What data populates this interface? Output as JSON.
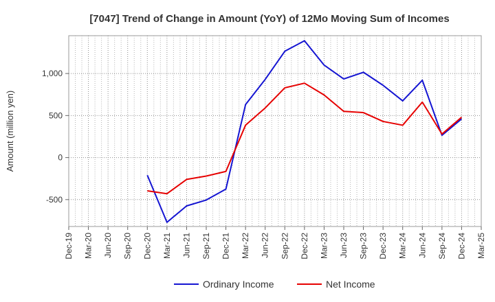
{
  "chart_data": {
    "type": "line",
    "title": "[7047]  Trend of Change in Amount (YoY) of 12Mo Moving Sum of Incomes",
    "xlabel": "",
    "ylabel": "Amount (million yen)",
    "ylim": [
      -820,
      1450
    ],
    "yticks": [
      -500,
      0,
      500,
      1000
    ],
    "ytick_labels": [
      "-500",
      "0",
      "500",
      "1,000"
    ],
    "categories": [
      "Dec-19",
      "Mar-20",
      "Jun-20",
      "Sep-20",
      "Dec-20",
      "Mar-21",
      "Jun-21",
      "Sep-21",
      "Dec-21",
      "Mar-22",
      "Jun-22",
      "Sep-22",
      "Dec-22",
      "Mar-23",
      "Jun-23",
      "Sep-23",
      "Dec-23",
      "Mar-24",
      "Jun-24",
      "Sep-24",
      "Dec-24",
      "Mar-25"
    ],
    "grid": true,
    "legend_position": "bottom",
    "series": [
      {
        "name": "Ordinary Income",
        "color": "#1414d2",
        "values": [
          null,
          null,
          null,
          null,
          -210,
          -770,
          -575,
          -505,
          -375,
          630,
          930,
          1265,
          1390,
          1100,
          935,
          1015,
          860,
          675,
          920,
          265,
          460,
          null
        ]
      },
      {
        "name": "Net Income",
        "color": "#e60000",
        "values": [
          null,
          null,
          null,
          null,
          -395,
          -430,
          -260,
          -220,
          -165,
          385,
          590,
          830,
          885,
          745,
          550,
          535,
          430,
          385,
          660,
          280,
          480,
          null
        ]
      }
    ]
  }
}
